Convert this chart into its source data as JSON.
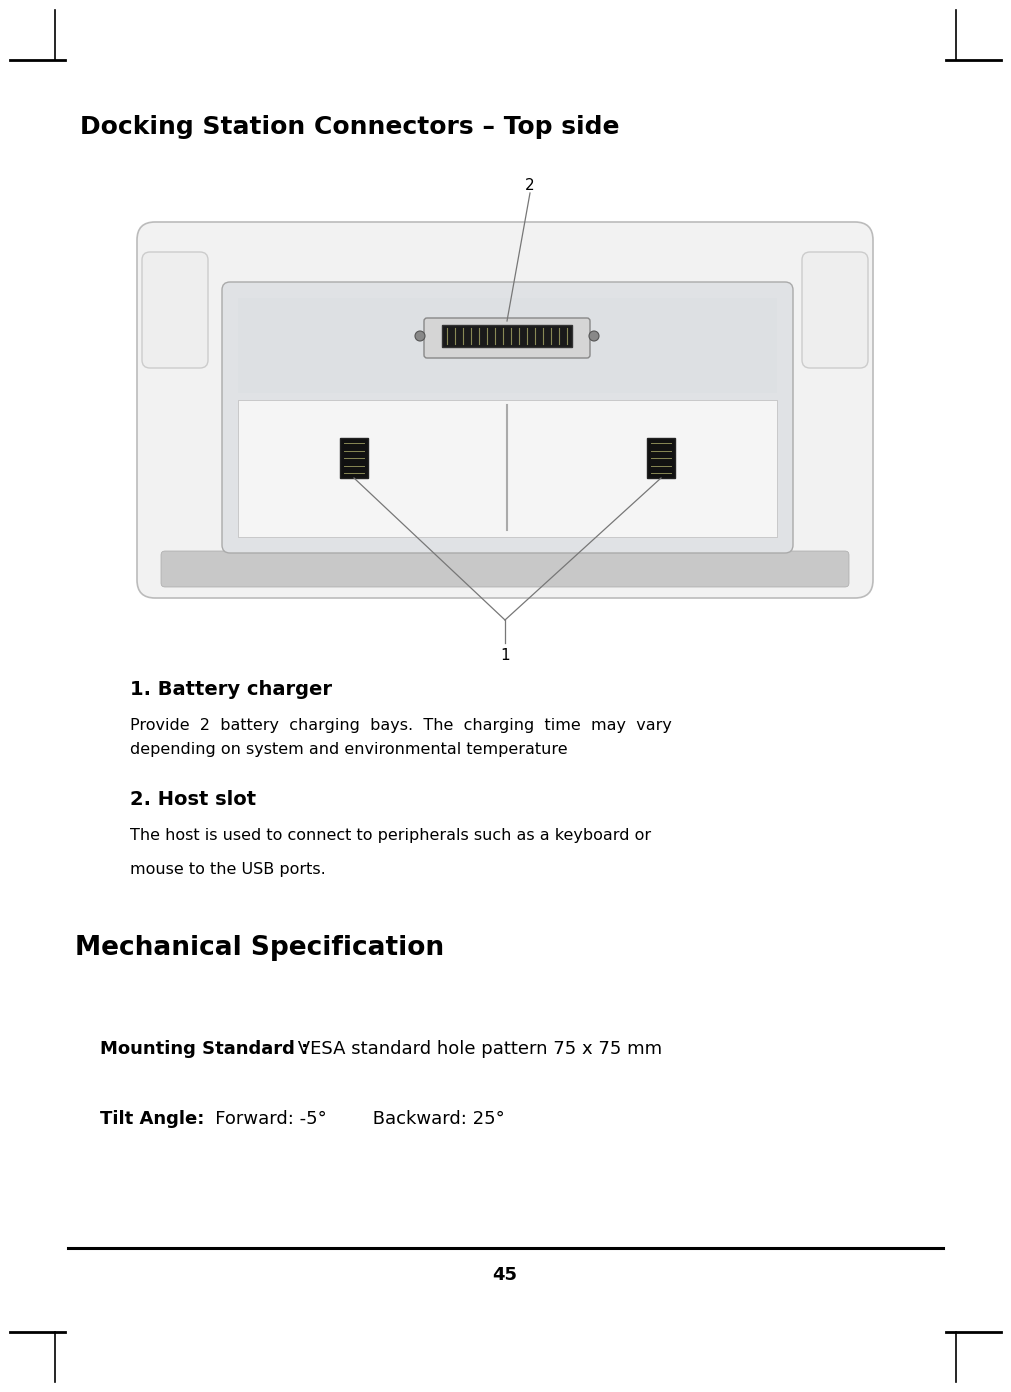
{
  "page_number": "45",
  "title": "Docking Station Connectors – Top side",
  "section1_heading": "1. Battery charger",
  "section1_body_line1": "Provide  2  battery  charging  bays.  The  charging  time  may  vary",
  "section1_body_line2": "depending on system and environmental temperature",
  "section2_heading": "2. Host slot",
  "section2_body1": "The host is used to connect to peripherals such as a keyboard or",
  "section2_body2": "mouse to the USB ports.",
  "mech_heading": "Mechanical Specification",
  "mounting_label": "Mounting Standard :",
  "mounting_value": " VESA standard hole pattern 75 x 75 mm",
  "tilt_label": "Tilt Angle:",
  "tilt_value": "   Forward: -5°        Backward: 25°",
  "bg_color": "#ffffff",
  "text_color": "#000000",
  "label1": "1",
  "label2": "2"
}
